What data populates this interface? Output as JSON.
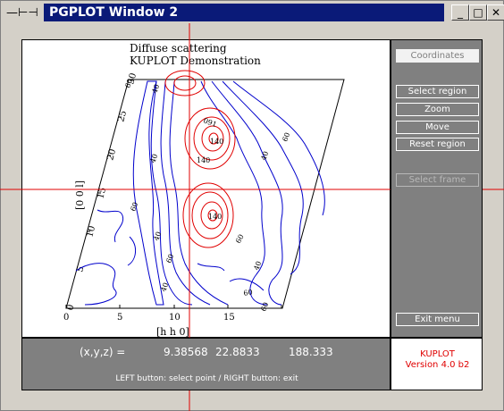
{
  "window": {
    "title": "PGPLOT Window 2",
    "buttons": {
      "minimize": "_",
      "maximize": "□",
      "close": "✕"
    }
  },
  "plot": {
    "title_line1": "Diffuse scattering",
    "title_line2": "KUPLOT Demonstration",
    "xlabel": "[h h 0]",
    "ylabel": "[0 0 l]",
    "x_ticks": [
      "0",
      "5",
      "10",
      "15"
    ],
    "y_ticks": [
      "0",
      "5",
      "10",
      "15",
      "20",
      "25",
      "30"
    ],
    "contour_labels": [
      "091",
      "140",
      "140",
      "140",
      "40",
      "40",
      "40",
      "40",
      "40",
      "40",
      "60",
      "60",
      "60",
      "60",
      "60",
      "60",
      "60"
    ],
    "colors": {
      "outer_contours": "#0000cc",
      "inner_contours": "#e00000",
      "crosshair": "#e00000"
    }
  },
  "panel": {
    "coordinates": "Coordinates",
    "select_region": "Select region",
    "zoom": "Zoom",
    "move": "Move",
    "reset_region": "Reset region",
    "select_frame": "Select frame",
    "exit_menu": "Exit menu"
  },
  "status": {
    "label": "(x,y,z) =",
    "x": "9.38568",
    "y": "22.8833",
    "z": "188.333",
    "help": "LEFT button: select point / RIGHT button: exit"
  },
  "app": {
    "name": "KUPLOT",
    "version": "Version 4.0 b2"
  }
}
